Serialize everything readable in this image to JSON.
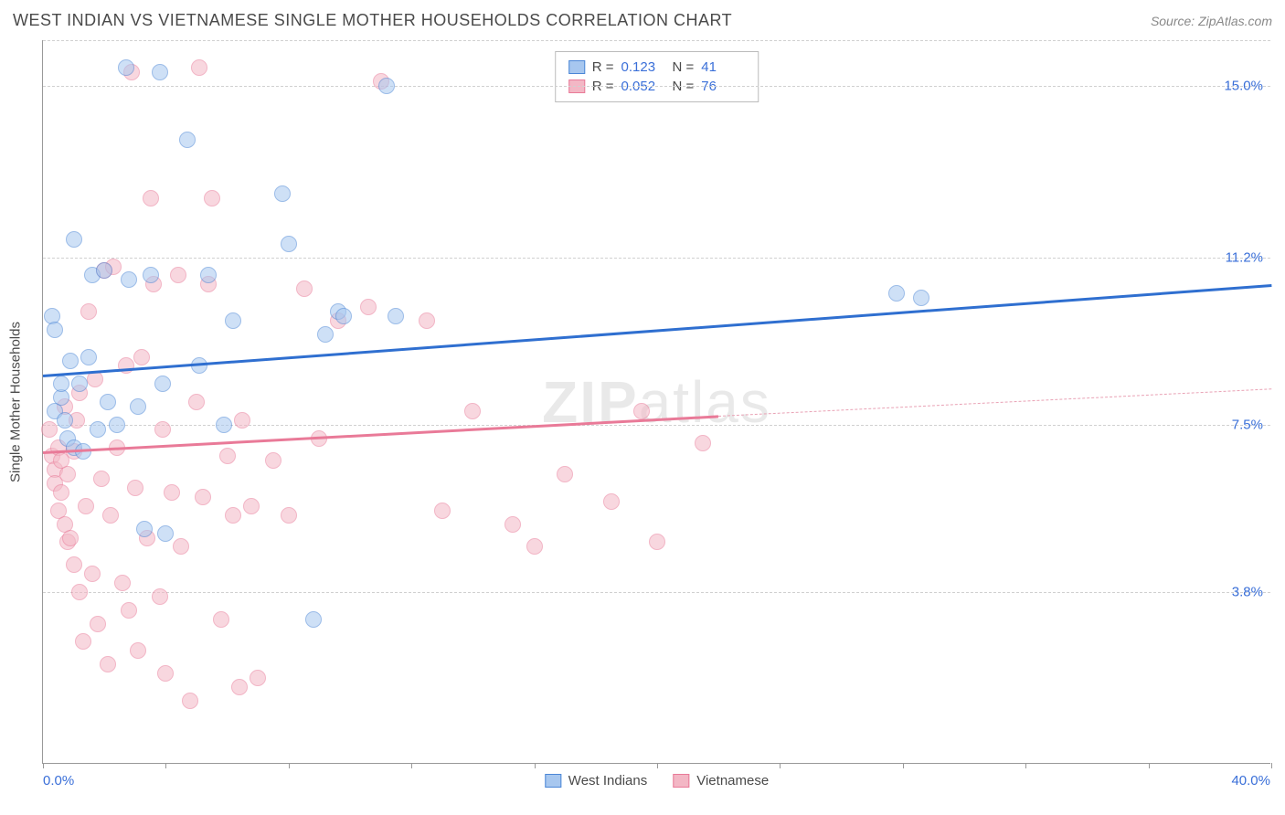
{
  "title": "WEST INDIAN VS VIETNAMESE SINGLE MOTHER HOUSEHOLDS CORRELATION CHART",
  "source": "Source: ZipAtlas.com",
  "watermark_bold": "ZIP",
  "watermark_light": "atlas",
  "chart": {
    "type": "scatter",
    "background_color": "#ffffff",
    "grid_color": "#d0d0d0",
    "axis_color": "#999999",
    "text_color": "#4a4a4a",
    "accent_color": "#3a6fd8",
    "yaxis_title": "Single Mother Households",
    "xlim": [
      0.0,
      40.0
    ],
    "ylim": [
      0.0,
      16.0
    ],
    "xlim_labels": {
      "min": "0.0%",
      "max": "40.0%"
    },
    "ytick_values": [
      3.8,
      7.5,
      11.2,
      15.0
    ],
    "ytick_labels": [
      "3.8%",
      "7.5%",
      "11.2%",
      "15.0%"
    ],
    "xtick_values": [
      0,
      4,
      8,
      12,
      16,
      20,
      24,
      28,
      32,
      36,
      40
    ],
    "marker_radius": 9,
    "marker_opacity": 0.55,
    "series": [
      {
        "name": "West Indians",
        "color_fill": "#a7c7ef",
        "color_stroke": "#4b86d6",
        "r_value": "0.123",
        "n_value": "41",
        "trend": {
          "x1": 0.0,
          "y1": 8.6,
          "x2": 40.0,
          "y2": 10.6,
          "color": "#2f6fd0"
        },
        "trend_dash_from_x": 40.0,
        "points": [
          [
            0.3,
            9.9
          ],
          [
            0.4,
            9.6
          ],
          [
            0.4,
            7.8
          ],
          [
            0.6,
            8.1
          ],
          [
            0.6,
            8.4
          ],
          [
            0.7,
            7.6
          ],
          [
            0.8,
            7.2
          ],
          [
            0.9,
            8.9
          ],
          [
            1.0,
            7.0
          ],
          [
            1.0,
            11.6
          ],
          [
            1.2,
            8.4
          ],
          [
            1.3,
            6.9
          ],
          [
            1.5,
            9.0
          ],
          [
            1.6,
            10.8
          ],
          [
            1.8,
            7.4
          ],
          [
            2.0,
            10.9
          ],
          [
            2.1,
            8.0
          ],
          [
            2.4,
            7.5
          ],
          [
            2.7,
            15.4
          ],
          [
            2.8,
            10.7
          ],
          [
            3.1,
            7.9
          ],
          [
            3.3,
            5.2
          ],
          [
            3.5,
            10.8
          ],
          [
            3.8,
            15.3
          ],
          [
            4.0,
            5.1
          ],
          [
            4.7,
            13.8
          ],
          [
            5.1,
            8.8
          ],
          [
            5.4,
            10.8
          ],
          [
            5.9,
            7.5
          ],
          [
            6.2,
            9.8
          ],
          [
            7.8,
            12.6
          ],
          [
            8.0,
            11.5
          ],
          [
            8.8,
            3.2
          ],
          [
            9.2,
            9.5
          ],
          [
            9.6,
            10.0
          ],
          [
            9.8,
            9.9
          ],
          [
            11.2,
            15.0
          ],
          [
            11.5,
            9.9
          ],
          [
            27.8,
            10.4
          ],
          [
            28.6,
            10.3
          ],
          [
            3.9,
            8.4
          ]
        ]
      },
      {
        "name": "Vietnamese",
        "color_fill": "#f3b7c5",
        "color_stroke": "#e97a98",
        "r_value": "0.052",
        "n_value": "76",
        "trend": {
          "x1": 0.0,
          "y1": 6.9,
          "x2": 22.0,
          "y2": 7.7,
          "color": "#e97a98"
        },
        "trend_dash": {
          "x1": 22.0,
          "y1": 7.7,
          "x2": 40.0,
          "y2": 8.3,
          "color": "#e9a2b5"
        },
        "points": [
          [
            0.2,
            7.4
          ],
          [
            0.3,
            6.8
          ],
          [
            0.4,
            6.5
          ],
          [
            0.4,
            6.2
          ],
          [
            0.5,
            7.0
          ],
          [
            0.5,
            5.6
          ],
          [
            0.6,
            6.0
          ],
          [
            0.6,
            6.7
          ],
          [
            0.7,
            5.3
          ],
          [
            0.7,
            7.9
          ],
          [
            0.8,
            4.9
          ],
          [
            0.8,
            6.4
          ],
          [
            0.9,
            5.0
          ],
          [
            1.0,
            6.9
          ],
          [
            1.0,
            4.4
          ],
          [
            1.1,
            7.6
          ],
          [
            1.2,
            3.8
          ],
          [
            1.2,
            8.2
          ],
          [
            1.3,
            2.7
          ],
          [
            1.4,
            5.7
          ],
          [
            1.5,
            10.0
          ],
          [
            1.6,
            4.2
          ],
          [
            1.7,
            8.5
          ],
          [
            1.8,
            3.1
          ],
          [
            1.9,
            6.3
          ],
          [
            2.0,
            10.9
          ],
          [
            2.1,
            2.2
          ],
          [
            2.2,
            5.5
          ],
          [
            2.3,
            11.0
          ],
          [
            2.4,
            7.0
          ],
          [
            2.6,
            4.0
          ],
          [
            2.7,
            8.8
          ],
          [
            2.8,
            3.4
          ],
          [
            2.9,
            15.3
          ],
          [
            3.0,
            6.1
          ],
          [
            3.1,
            2.5
          ],
          [
            3.2,
            9.0
          ],
          [
            3.4,
            5.0
          ],
          [
            3.5,
            12.5
          ],
          [
            3.6,
            10.6
          ],
          [
            3.8,
            3.7
          ],
          [
            3.9,
            7.4
          ],
          [
            4.0,
            2.0
          ],
          [
            4.2,
            6.0
          ],
          [
            4.4,
            10.8
          ],
          [
            4.5,
            4.8
          ],
          [
            4.8,
            1.4
          ],
          [
            5.0,
            8.0
          ],
          [
            5.1,
            15.4
          ],
          [
            5.2,
            5.9
          ],
          [
            5.4,
            10.6
          ],
          [
            5.5,
            12.5
          ],
          [
            5.8,
            3.2
          ],
          [
            6.0,
            6.8
          ],
          [
            6.2,
            5.5
          ],
          [
            6.4,
            1.7
          ],
          [
            6.5,
            7.6
          ],
          [
            6.8,
            5.7
          ],
          [
            7.0,
            1.9
          ],
          [
            7.5,
            6.7
          ],
          [
            8.0,
            5.5
          ],
          [
            8.5,
            10.5
          ],
          [
            9.0,
            7.2
          ],
          [
            9.6,
            9.8
          ],
          [
            10.6,
            10.1
          ],
          [
            11.0,
            15.1
          ],
          [
            12.5,
            9.8
          ],
          [
            13.0,
            5.6
          ],
          [
            14.0,
            7.8
          ],
          [
            15.3,
            5.3
          ],
          [
            16.0,
            4.8
          ],
          [
            17.0,
            6.4
          ],
          [
            18.5,
            5.8
          ],
          [
            19.5,
            7.8
          ],
          [
            20.0,
            4.9
          ],
          [
            21.5,
            7.1
          ]
        ]
      }
    ]
  },
  "legend": {
    "series1_label": "West Indians",
    "series2_label": "Vietnamese",
    "r_label": "R =",
    "n_label": "N ="
  }
}
